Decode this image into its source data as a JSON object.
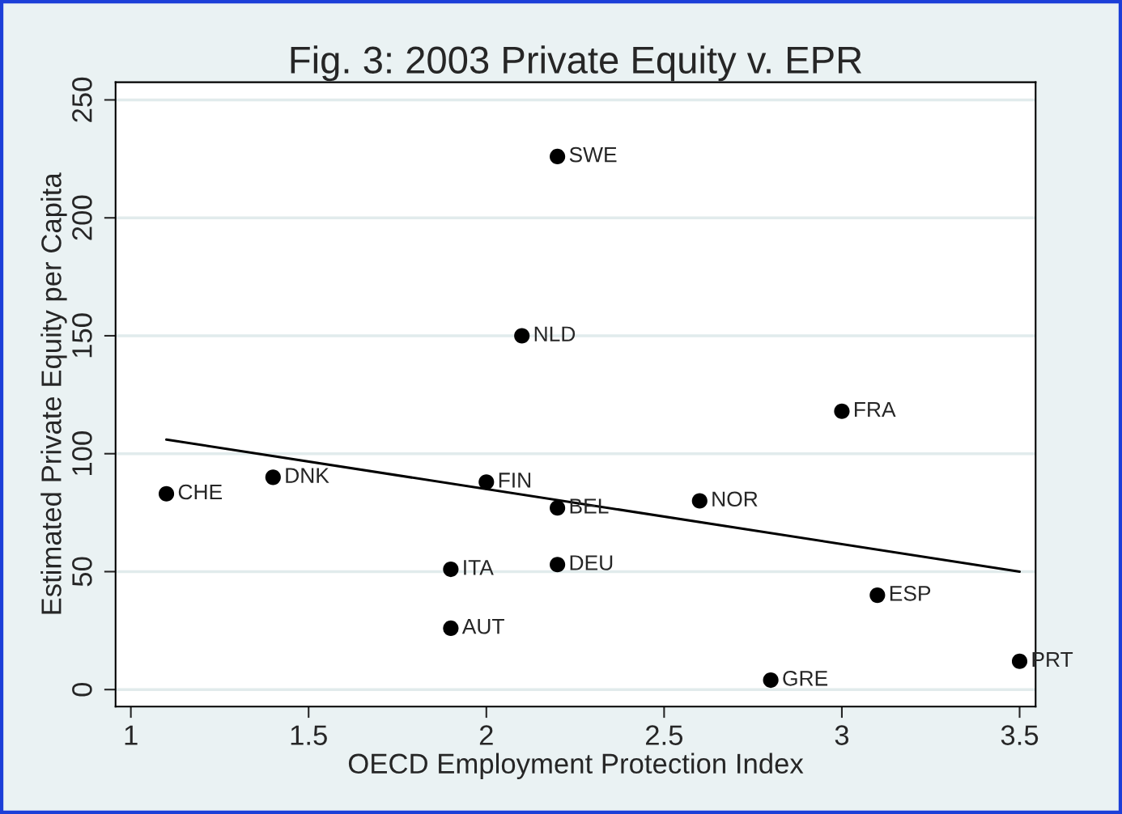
{
  "chart_data": {
    "type": "scatter",
    "title": "Fig. 3: 2003 Private Equity v. EPR",
    "xlabel": "OECD Employment Protection Index",
    "ylabel": "Estimated Private Equity per Capita",
    "xlim": [
      0.957,
      3.545
    ],
    "ylim": [
      -7.2,
      257.5
    ],
    "xticks": [
      1,
      1.5,
      2,
      2.5,
      3,
      3.5
    ],
    "yticks": [
      0,
      50,
      100,
      150,
      200,
      250
    ],
    "grid": "y",
    "series": [
      {
        "marker": "circle",
        "color": "#000000",
        "x": [
          2.2,
          2.1,
          3.0,
          1.4,
          1.1,
          2.0,
          2.2,
          2.6,
          1.9,
          2.2,
          1.9,
          3.1,
          2.8,
          3.5
        ],
        "values": [
          226,
          150,
          118,
          90,
          83,
          88,
          77,
          80,
          51,
          53,
          26,
          40,
          4,
          12
        ]
      },
      {
        "type": "line",
        "color": "#000000",
        "x": [
          1.1,
          3.5
        ],
        "values": [
          106,
          50
        ]
      }
    ],
    "annotations": [
      {
        "text": "SWE",
        "x": 2.2,
        "y": 226
      },
      {
        "text": "NLD",
        "x": 2.1,
        "y": 150
      },
      {
        "text": "FRA",
        "x": 3.0,
        "y": 118
      },
      {
        "text": "DNK",
        "x": 1.4,
        "y": 90
      },
      {
        "text": "CHE",
        "x": 1.1,
        "y": 83
      },
      {
        "text": "FIN",
        "x": 2.0,
        "y": 88
      },
      {
        "text": "BEL",
        "x": 2.2,
        "y": 77
      },
      {
        "text": "NOR",
        "x": 2.6,
        "y": 80
      },
      {
        "text": "ITA",
        "x": 1.9,
        "y": 51
      },
      {
        "text": "DEU",
        "x": 2.2,
        "y": 53
      },
      {
        "text": "AUT",
        "x": 1.9,
        "y": 26
      },
      {
        "text": "ESP",
        "x": 3.1,
        "y": 40
      },
      {
        "text": "GRE",
        "x": 2.8,
        "y": 4
      },
      {
        "text": "PRT",
        "x": 3.5,
        "y": 12
      }
    ]
  }
}
